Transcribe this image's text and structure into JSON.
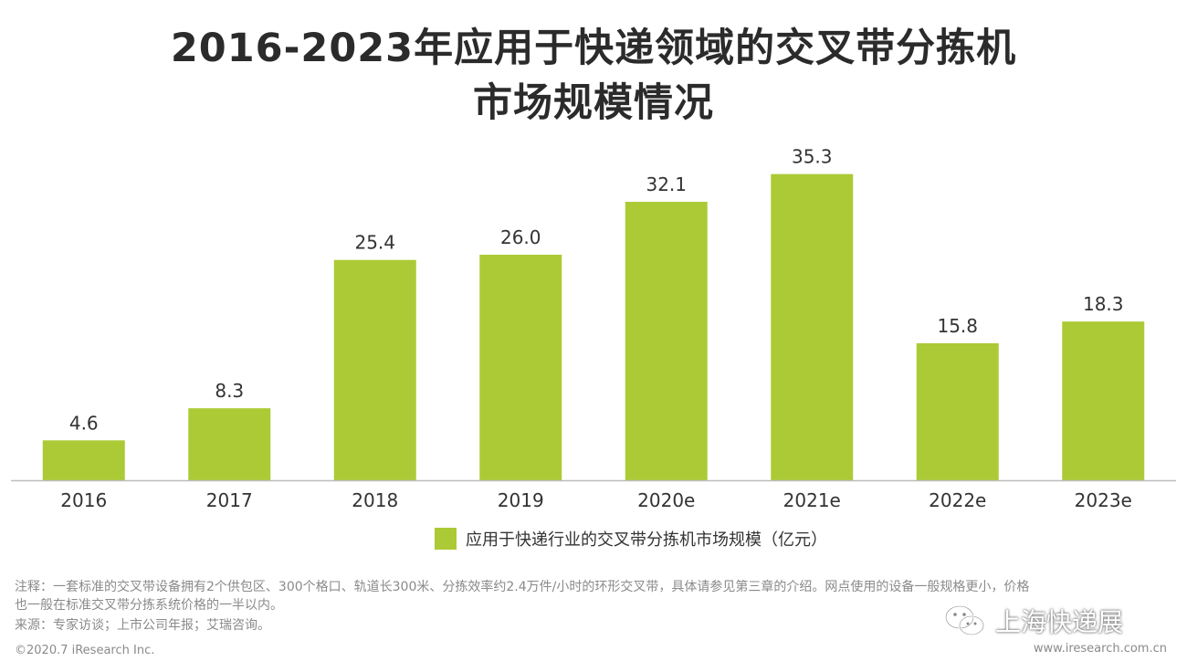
{
  "title": {
    "line1": "2016-2023年应用于快递领域的交叉带分拣机",
    "line2": "市场规模情况"
  },
  "chart_data": {
    "type": "bar",
    "categories": [
      "2016",
      "2017",
      "2018",
      "2019",
      "2020e",
      "2021e",
      "2022e",
      "2023e"
    ],
    "series": [
      {
        "name": "应用于快递行业的交叉带分拣机市场规模（亿元）",
        "values": [
          4.6,
          8.3,
          25.4,
          26.0,
          32.1,
          35.3,
          15.8,
          18.3
        ]
      }
    ],
    "value_labels": [
      "4.6",
      "8.3",
      "25.4",
      "26.0",
      "32.1",
      "35.3",
      "15.8",
      "18.3"
    ],
    "ylim": [
      0,
      40
    ],
    "grid": false,
    "legend_position": "bottom",
    "bar_color": "#acca35",
    "axis_color": "#bdbdbd"
  },
  "notes": {
    "line1": "注释：一套标准的交叉带设备拥有2个供包区、300个格口、轨道长300米、分拣效率约2.4万件/小时的环形交叉带，具体请参见第三章的介绍。网点使用的设备一般规格更小，价格",
    "line2": "也一般在标准交叉带分拣系统价格的一半以内。",
    "source": "来源：专家访谈；上市公司年报；艾瑞咨询。",
    "copyright": "©2020.7 iResearch Inc.",
    "website": "www.iresearch.com.cn"
  },
  "watermark": {
    "text": "上海快递展",
    "icon": "wechat-icon"
  }
}
